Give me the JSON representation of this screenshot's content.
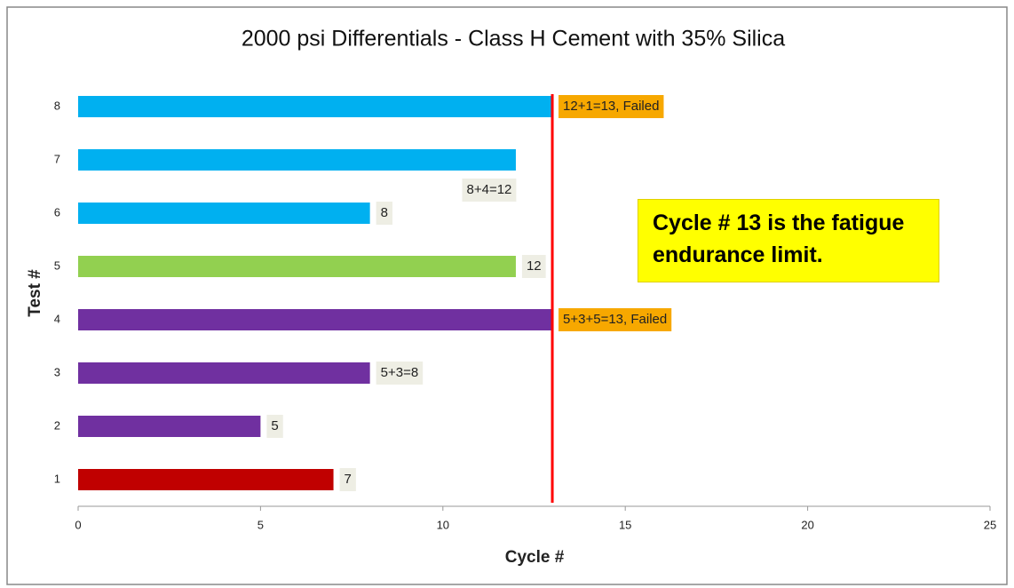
{
  "chart_data": {
    "type": "hbar",
    "title": "2000 psi Differentials - Class H Cement with 35% Silica",
    "x_label": "Cycle #",
    "y_label": "Test #",
    "categories": [
      "1",
      "2",
      "3",
      "4",
      "5",
      "6",
      "7",
      "8"
    ],
    "values": [
      7,
      5,
      8,
      13,
      12,
      8,
      12,
      13
    ],
    "value_labels": [
      "7",
      "5",
      "5+3=8",
      "5+3+5=13, Failed",
      "12",
      "8",
      "8+4=12",
      "12+1=13, Failed"
    ],
    "colors": [
      "#c00000",
      "#7030a0",
      "#7030a0",
      "#7030a0",
      "#92d050",
      "#00b0f0",
      "#00b0f0",
      "#00b0f0"
    ],
    "value_label_colors": [
      "#eeeee4",
      "#eeeee4",
      "#eeeee4",
      "#f7a800",
      "#eeeee4",
      "#eeeee4",
      "#eeeee4",
      "#f7a800"
    ],
    "xlim": [
      0,
      25
    ],
    "xticks": [
      0,
      5,
      10,
      15,
      20,
      25
    ],
    "grid": false,
    "reference_line": {
      "value": 13,
      "color": "#ff0000"
    },
    "annotation": "Cycle # 13 is the fatigue endurance limit."
  }
}
